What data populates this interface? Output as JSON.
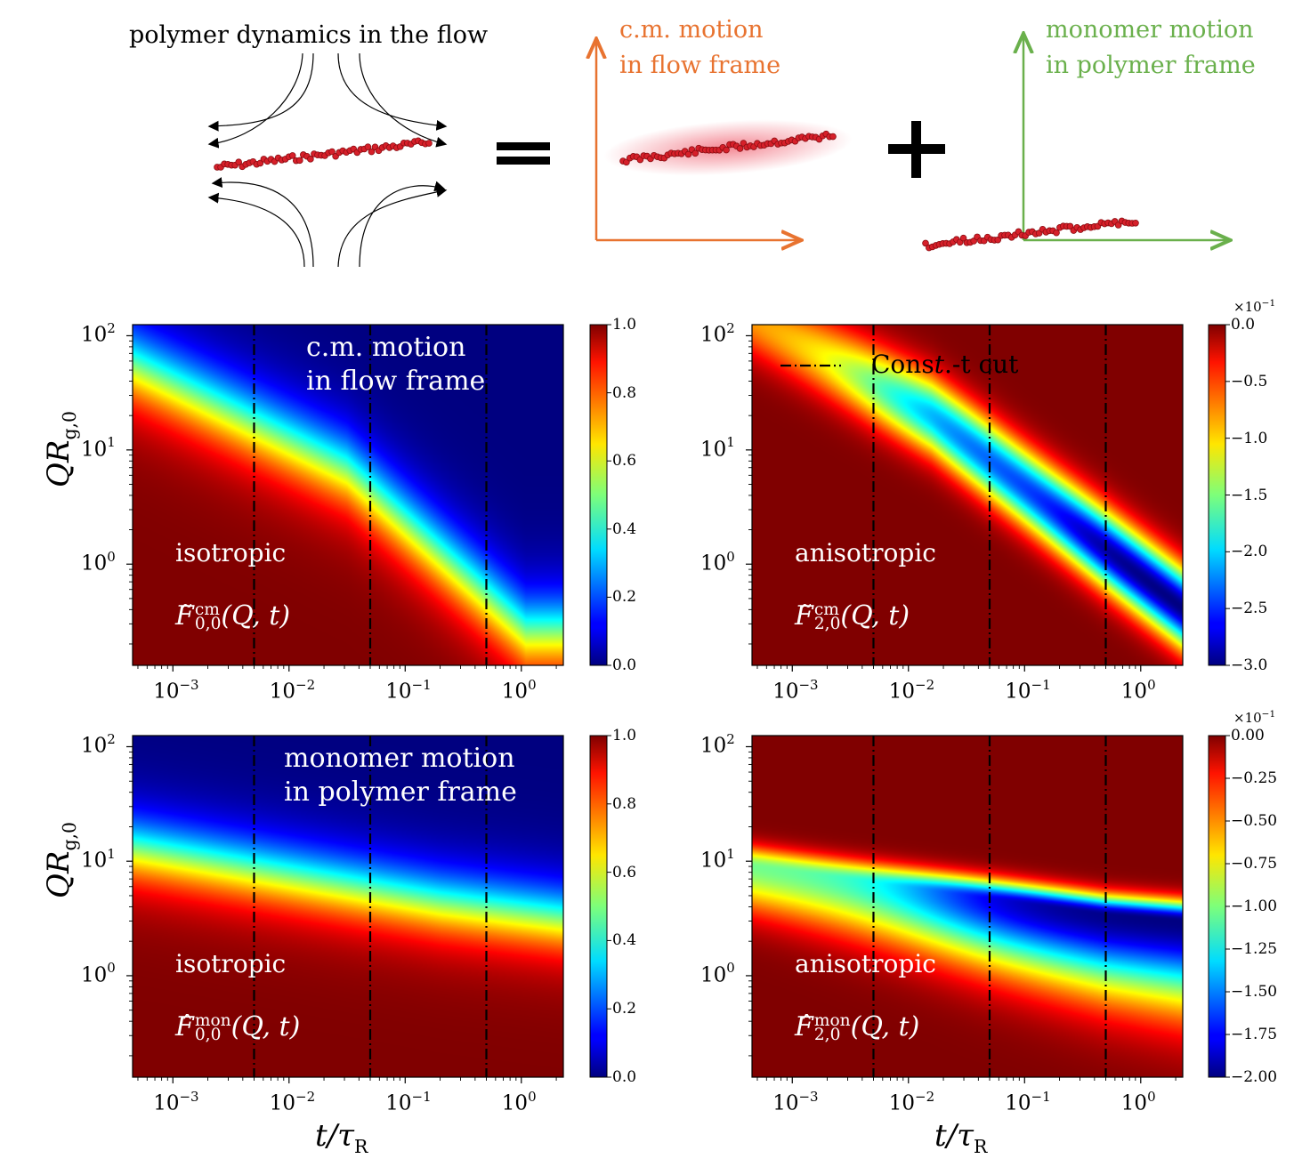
{
  "schematic": {
    "title": "polymer dynamics in the flow",
    "equals_sign": "=",
    "plus_sign": "+",
    "cm_label_line1": "c.m. motion",
    "cm_label_line2": "in flow frame",
    "mon_label_line1": "monomer motion",
    "mon_label_line2": "in polymer frame",
    "cm_color": "#e87330",
    "mon_color": "#6ab04c",
    "bead_color": "#d6202a"
  },
  "axis_labels": {
    "y_var": "QR",
    "y_sub": "g,0",
    "x_var": "t/τ",
    "x_sub": "R"
  },
  "chart_data": [
    {
      "type": "heatmap",
      "id": "F00cm",
      "xscale": "log",
      "yscale": "log",
      "xlim": [
        0.00045,
        2.3
      ],
      "ylim": [
        0.13,
        125
      ],
      "x_ticks": [
        {
          "v": 0.001,
          "label": "10^-3"
        },
        {
          "v": 0.01,
          "label": "10^-2"
        },
        {
          "v": 0.1,
          "label": "10^-1"
        },
        {
          "v": 1,
          "label": "10^0"
        }
      ],
      "y_ticks": [
        {
          "v": 1,
          "label": "10^0"
        },
        {
          "v": 10,
          "label": "10^1"
        },
        {
          "v": 100,
          "label": "10^2"
        }
      ],
      "cut_lines": [
        0.005,
        0.05,
        0.5
      ],
      "annotation_main_line1": "c.m. motion",
      "annotation_main_line2": "in flow frame",
      "annotation_type": "isotropic",
      "function_label": "F̃",
      "function_sub": "0,0",
      "function_sup": "cm",
      "function_args": "(Q, t)",
      "colorbar": {
        "range": [
          0.0,
          1.0
        ],
        "ticks": [
          "0.0",
          "0.2",
          "0.4",
          "0.6",
          "0.8",
          "1.0"
        ],
        "multiplier": ""
      },
      "colormap": "jet",
      "ylabel": "QR_g,0",
      "xlabel": ""
    },
    {
      "type": "heatmap",
      "id": "F20cm",
      "xscale": "log",
      "yscale": "log",
      "xlim": [
        0.00045,
        2.3
      ],
      "ylim": [
        0.13,
        125
      ],
      "x_ticks": [
        {
          "v": 0.001,
          "label": "10^-3"
        },
        {
          "v": 0.01,
          "label": "10^-2"
        },
        {
          "v": 0.1,
          "label": "10^-1"
        },
        {
          "v": 1,
          "label": "10^0"
        }
      ],
      "y_ticks": [
        {
          "v": 1,
          "label": "10^0"
        },
        {
          "v": 10,
          "label": "10^1"
        },
        {
          "v": 100,
          "label": "10^2"
        }
      ],
      "cut_lines": [
        0.005,
        0.05,
        0.5
      ],
      "legend_text": "Const.-t cut",
      "legend_position": "top-left",
      "annotation_type": "anisotropic",
      "function_label": "F̃",
      "function_sub": "2,0",
      "function_sup": "cm",
      "function_args": "(Q, t)",
      "colorbar": {
        "range": [
          -3.0,
          0.0
        ],
        "ticks": [
          "−3.0",
          "−2.5",
          "−2.0",
          "−1.5",
          "−1.0",
          "−0.5",
          "0.0"
        ],
        "multiplier": "×10^-1"
      },
      "colormap": "jet"
    },
    {
      "type": "heatmap",
      "id": "F00mon",
      "xscale": "log",
      "yscale": "log",
      "xlim": [
        0.00045,
        2.3
      ],
      "ylim": [
        0.13,
        125
      ],
      "x_ticks": [
        {
          "v": 0.001,
          "label": "10^-3"
        },
        {
          "v": 0.01,
          "label": "10^-2"
        },
        {
          "v": 0.1,
          "label": "10^-1"
        },
        {
          "v": 1,
          "label": "10^0"
        }
      ],
      "y_ticks": [
        {
          "v": 1,
          "label": "10^0"
        },
        {
          "v": 10,
          "label": "10^1"
        },
        {
          "v": 100,
          "label": "10^2"
        }
      ],
      "cut_lines": [
        0.005,
        0.05,
        0.5
      ],
      "annotation_main_line1": "monomer motion",
      "annotation_main_line2": "in polymer frame",
      "annotation_type": "isotropic",
      "function_label": "F̂",
      "function_sub": "0,0",
      "function_sup": "mon",
      "function_args": "(Q, t)",
      "colorbar": {
        "range": [
          0.0,
          1.0
        ],
        "ticks": [
          "0.0",
          "0.2",
          "0.4",
          "0.6",
          "0.8",
          "1.0"
        ],
        "multiplier": ""
      },
      "colormap": "jet",
      "ylabel": "QR_g,0",
      "xlabel": "t/τ_R"
    },
    {
      "type": "heatmap",
      "id": "F20mon",
      "xscale": "log",
      "yscale": "log",
      "xlim": [
        0.00045,
        2.3
      ],
      "ylim": [
        0.13,
        125
      ],
      "x_ticks": [
        {
          "v": 0.001,
          "label": "10^-3"
        },
        {
          "v": 0.01,
          "label": "10^-2"
        },
        {
          "v": 0.1,
          "label": "10^-1"
        },
        {
          "v": 1,
          "label": "10^0"
        }
      ],
      "y_ticks": [
        {
          "v": 1,
          "label": "10^0"
        },
        {
          "v": 10,
          "label": "10^1"
        },
        {
          "v": 100,
          "label": "10^2"
        }
      ],
      "cut_lines": [
        0.005,
        0.05,
        0.5
      ],
      "annotation_type": "anisotropic",
      "function_label": "F̂",
      "function_sub": "2,0",
      "function_sup": "mon",
      "function_args": "(Q, t)",
      "colorbar": {
        "range": [
          -2.0,
          0.0
        ],
        "ticks": [
          "−2.00",
          "−1.75",
          "−1.50",
          "−1.25",
          "−1.00",
          "−0.75",
          "−0.50",
          "−0.25",
          "0.00"
        ],
        "multiplier": "×10^-1"
      },
      "colormap": "jet",
      "xlabel": "t/τ_R"
    }
  ]
}
